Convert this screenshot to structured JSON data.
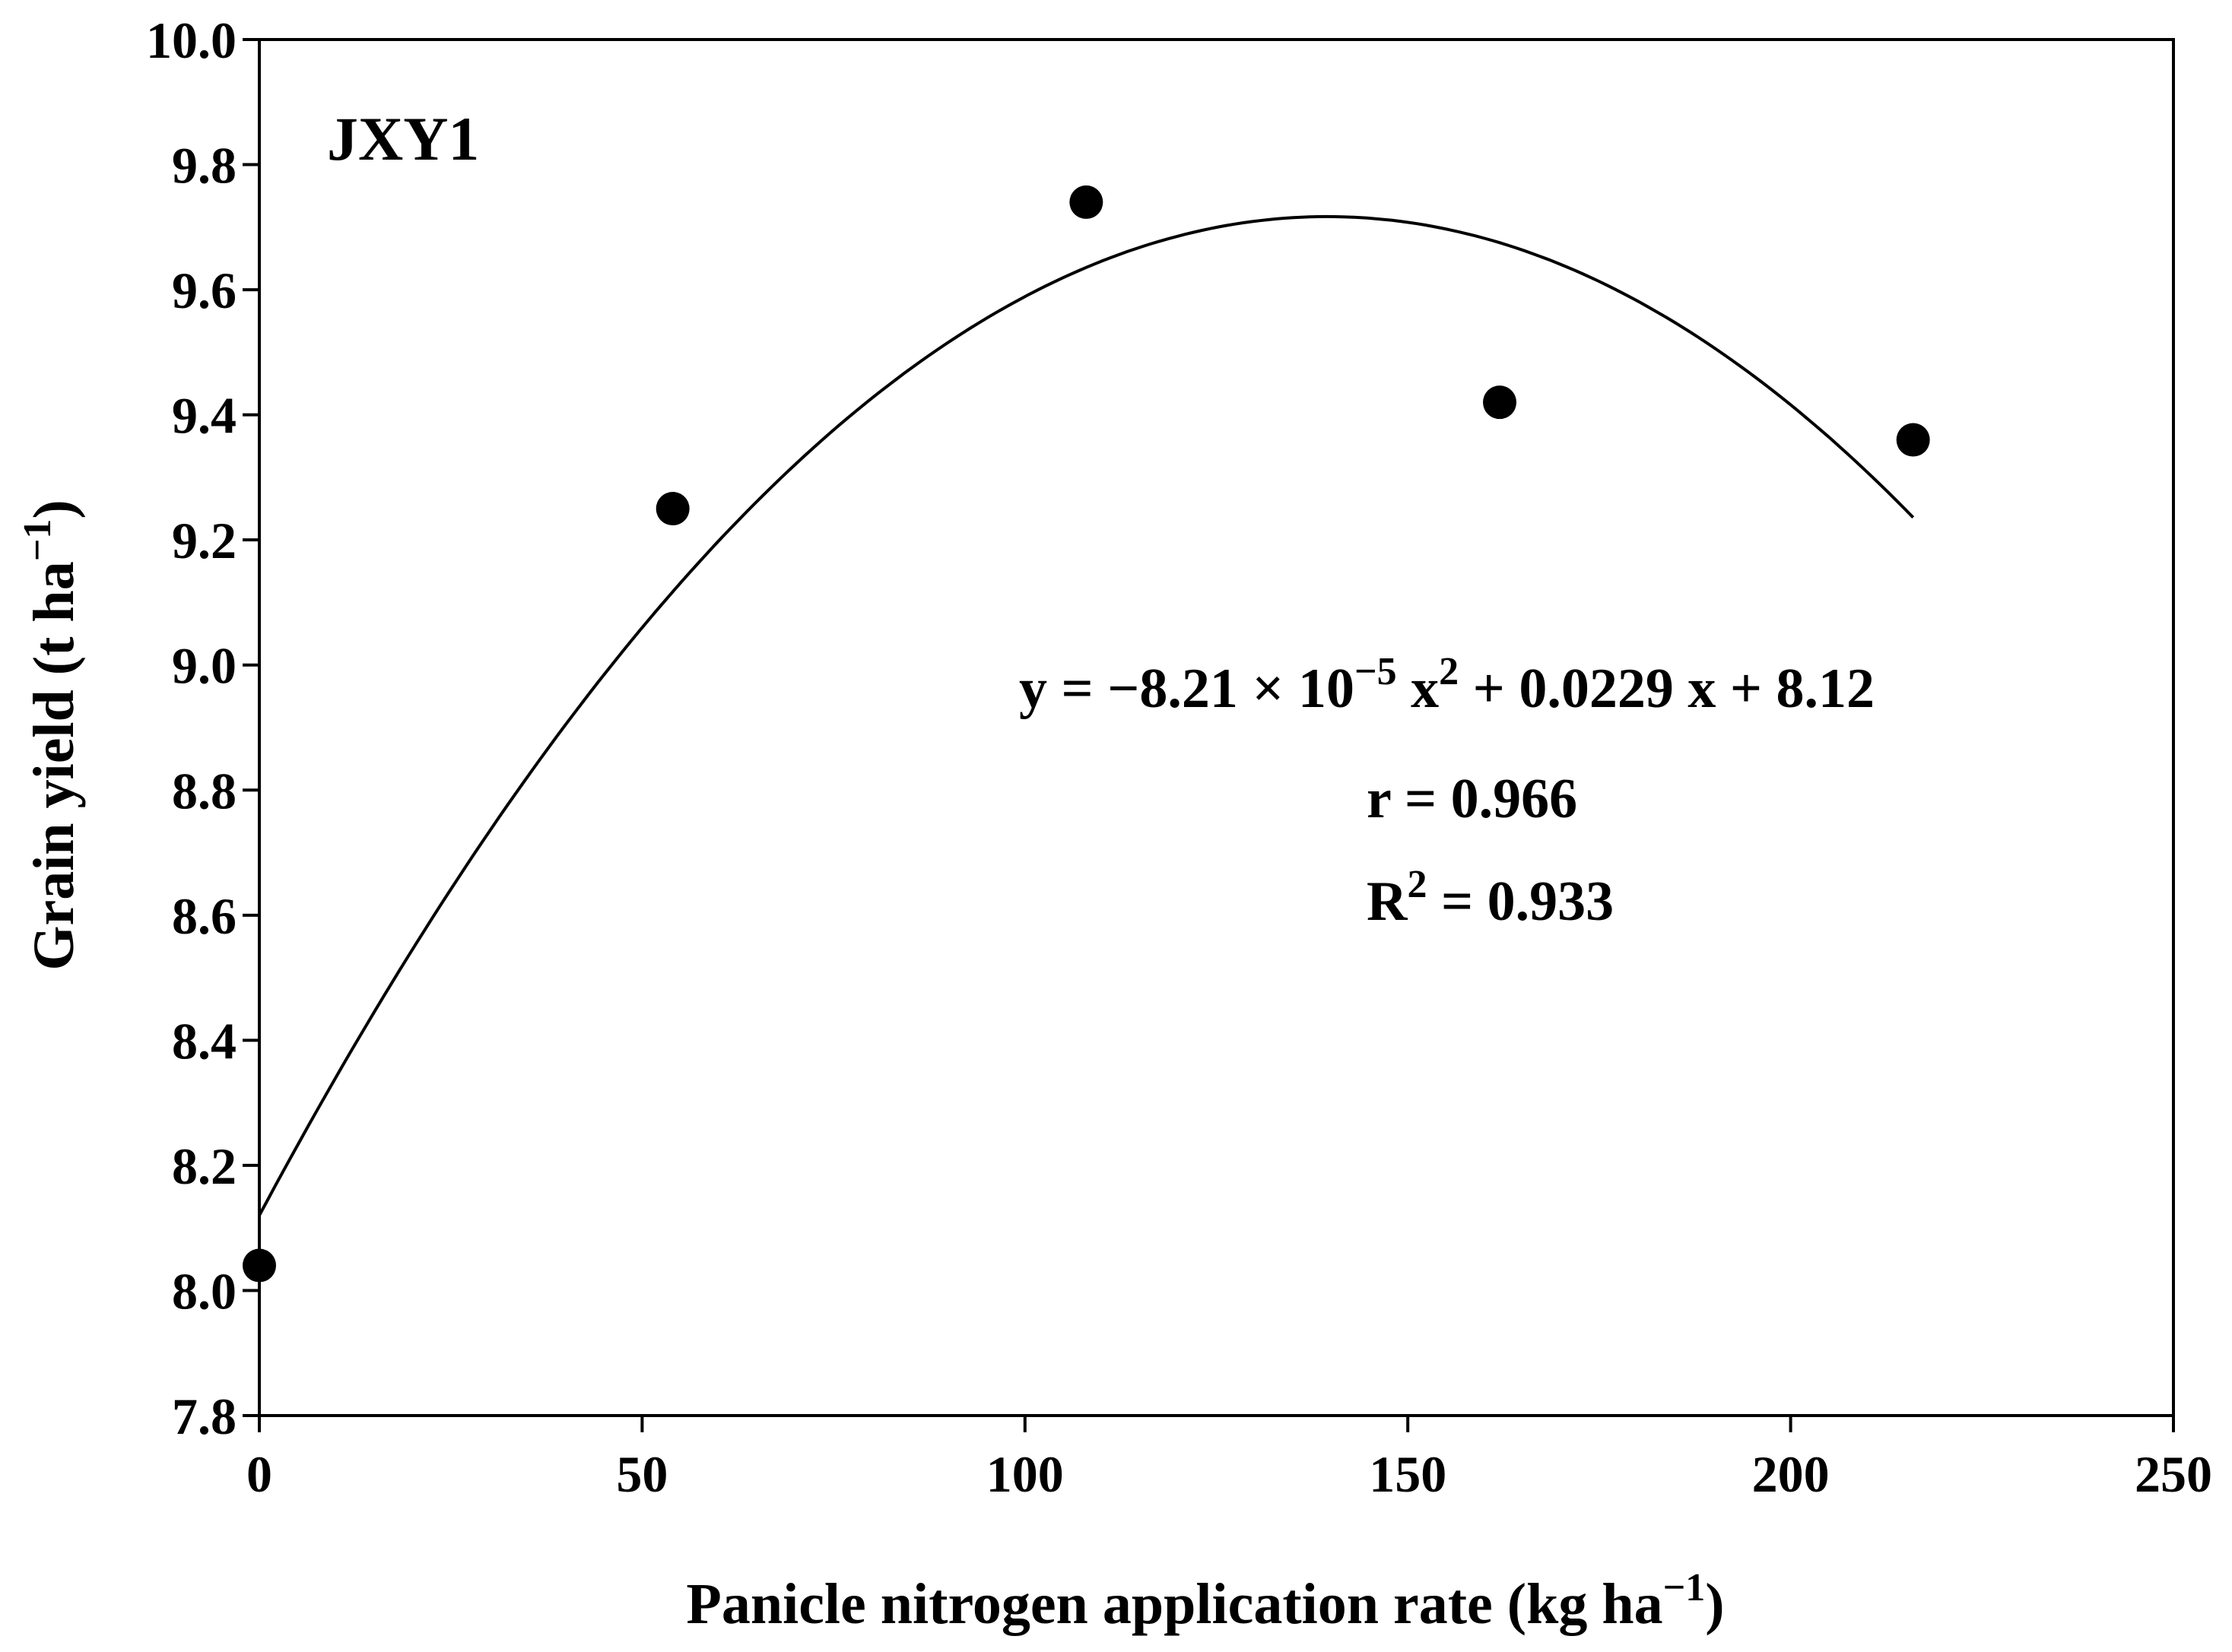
{
  "chart_data": {
    "type": "scatter",
    "panel_label": "JXY1",
    "xlabel": "Panicle nitrogen application rate (kg ha",
    "xlabel_unit_exp": "−1",
    "xlabel_close": ")",
    "ylabel": "Grain yield (t ha",
    "ylabel_unit_exp": "−1",
    "ylabel_close": ")",
    "xlim": [
      0,
      250
    ],
    "ylim": [
      7.8,
      10.0
    ],
    "x_ticks": [
      0,
      50,
      100,
      150,
      200,
      250
    ],
    "x_tick_labels": [
      "0",
      "50",
      "100",
      "150",
      "200",
      "250"
    ],
    "y_ticks": [
      7.8,
      8.0,
      8.2,
      8.4,
      8.6,
      8.8,
      9.0,
      9.2,
      9.4,
      9.6,
      9.8,
      10.0
    ],
    "y_tick_labels": [
      "7.8",
      "8.0",
      "8.2",
      "8.4",
      "8.6",
      "8.8",
      "9.0",
      "9.2",
      "9.4",
      "9.6",
      "9.8",
      "10.0"
    ],
    "grid": false,
    "series": [
      {
        "x": [
          0,
          54,
          108,
          162,
          216
        ],
        "y": [
          8.04,
          9.25,
          9.74,
          9.42,
          9.36
        ]
      }
    ],
    "fit": {
      "type": "quadratic",
      "a": -8.21e-05,
      "b": 0.0229,
      "c": 8.12,
      "x_range": [
        0,
        216
      ]
    },
    "annotations": {
      "equation": {
        "y_eq": "y = −8.21 ×  10",
        "exp1": "−5",
        "x_part": " x",
        "exp2": "2",
        "rest": " + 0.0229 x + 8.12"
      },
      "r_text": "r = 0.966",
      "R2": {
        "R": "R",
        "exp": "2",
        "rest": " = 0.933"
      }
    }
  }
}
